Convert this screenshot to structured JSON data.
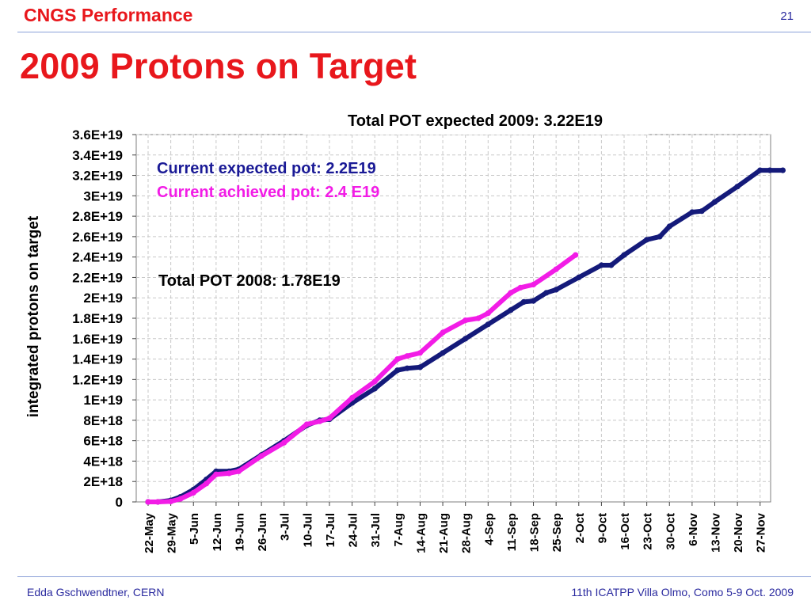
{
  "header": {
    "section_title": "CNGS Performance",
    "page_number": "21"
  },
  "slide": {
    "title": "2009 Protons on Target"
  },
  "footer": {
    "author": "Edda Gschwendtner, CERN",
    "event": "11th ICATPP Villa Olmo, Como 5-9 Oct. 2009"
  },
  "colors": {
    "title_red": "#e8171c",
    "footer_blue": "#2a2a9f",
    "expected_series": "#141a7a",
    "achieved_series": "#f21ce6"
  },
  "chart_data": {
    "type": "line",
    "title": "Total POT expected 2009: 3.22E19",
    "xlabel": "",
    "ylabel": "integrated protons on target",
    "ylim": [
      0,
      3.6e+19
    ],
    "yticks": [
      0,
      2e+18,
      4e+18,
      6e+18,
      8e+18,
      1e+19,
      1.2e+19,
      1.4e+19,
      1.6e+19,
      1.8e+19,
      2e+19,
      2.2e+19,
      2.4e+19,
      2.6e+19,
      2.8e+19,
      3e+19,
      3.2e+19,
      3.4e+19,
      3.6e+19
    ],
    "ytick_labels": [
      "0",
      "2E+18",
      "4E+18",
      "6E+18",
      "8E+18",
      "1E+19",
      "1.2E+19",
      "1.4E+19",
      "1.6E+19",
      "1.8E+19",
      "2E+19",
      "2.2E+19",
      "2.4E+19",
      "2.6E+19",
      "2.8E+19",
      "3E+19",
      "3.2E+19",
      "3.4E+19",
      "3.6E+19"
    ],
    "categories": [
      "22-May",
      "29-May",
      "5-Jun",
      "12-Jun",
      "19-Jun",
      "26-Jun",
      "3-Jul",
      "10-Jul",
      "17-Jul",
      "24-Jul",
      "31-Jul",
      "7-Aug",
      "14-Aug",
      "21-Aug",
      "28-Aug",
      "4-Sep",
      "11-Sep",
      "18-Sep",
      "25-Sep",
      "2-Oct",
      "9-Oct",
      "16-Oct",
      "23-Oct",
      "30-Oct",
      "6-Nov",
      "13-Nov",
      "20-Nov",
      "27-Nov"
    ],
    "grid": true,
    "annotations": [
      "Current expected pot: 2.2E19",
      "Current achieved pot: 2.4 E19",
      "Total POT 2008: 1.78E19"
    ],
    "series": [
      {
        "color": "#141a7a",
        "x": [
          "22-May",
          "25-May",
          "29-May",
          "1-Jun",
          "5-Jun",
          "9-Jun",
          "12-Jun",
          "16-Jun",
          "19-Jun",
          "26-Jun",
          "3-Jul",
          "10-Jul",
          "14-Jul",
          "17-Jul",
          "24-Jul",
          "31-Jul",
          "7-Aug",
          "10-Aug",
          "14-Aug",
          "21-Aug",
          "28-Aug",
          "4-Sep",
          "11-Sep",
          "15-Sep",
          "18-Sep",
          "22-Sep",
          "25-Sep",
          "2-Oct",
          "9-Oct",
          "12-Oct",
          "16-Oct",
          "23-Oct",
          "27-Oct",
          "30-Oct",
          "6-Nov",
          "9-Nov",
          "13-Nov",
          "20-Nov",
          "27-Nov",
          "30-Nov",
          "4-Dec"
        ],
        "y": [
          0,
          0,
          1.5e+17,
          5e+17,
          1.2e+18,
          2.2e+18,
          3e+18,
          3e+18,
          3.2e+18,
          4.6e+18,
          6e+18,
          7.5e+18,
          8e+18,
          8.1e+18,
          9.7e+18,
          1.11e+19,
          1.29e+19,
          1.31e+19,
          1.32e+19,
          1.46e+19,
          1.6e+19,
          1.74e+19,
          1.88e+19,
          1.96e+19,
          1.97e+19,
          2.05e+19,
          2.08e+19,
          2.2e+19,
          2.32e+19,
          2.32e+19,
          2.42e+19,
          2.57e+19,
          2.6e+19,
          2.7e+19,
          2.84e+19,
          2.85e+19,
          2.94e+19,
          3.09e+19,
          3.25e+19,
          3.25e+19,
          3.25e+19
        ]
      },
      {
        "color": "#f21ce6",
        "x": [
          "22-May",
          "25-May",
          "29-May",
          "1-Jun",
          "5-Jun",
          "9-Jun",
          "12-Jun",
          "16-Jun",
          "19-Jun",
          "26-Jun",
          "3-Jul",
          "10-Jul",
          "14-Jul",
          "17-Jul",
          "24-Jul",
          "31-Jul",
          "7-Aug",
          "10-Aug",
          "14-Aug",
          "21-Aug",
          "28-Aug",
          "1-Sep",
          "4-Sep",
          "11-Sep",
          "14-Sep",
          "18-Sep",
          "25-Sep",
          "1-Oct"
        ],
        "y": [
          0,
          0,
          5e+16,
          3e+17,
          9e+17,
          1.8e+18,
          2.7e+18,
          2.8e+18,
          3e+18,
          4.5e+18,
          5.8e+18,
          7.6e+18,
          7.9e+18,
          8.2e+18,
          1.02e+19,
          1.18e+19,
          1.4e+19,
          1.43e+19,
          1.46e+19,
          1.66e+19,
          1.78e+19,
          1.8e+19,
          1.85e+19,
          2.05e+19,
          2.1e+19,
          2.13e+19,
          2.28e+19,
          2.42e+19
        ]
      }
    ]
  }
}
